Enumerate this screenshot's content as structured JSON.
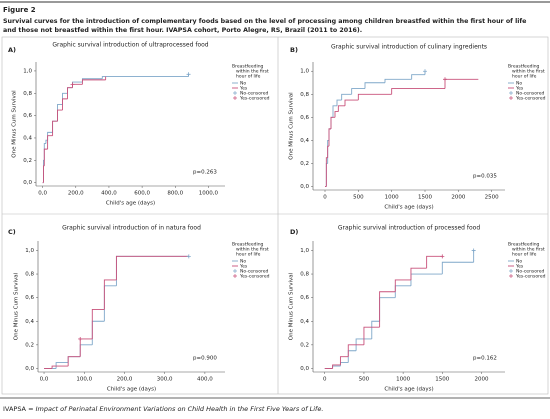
{
  "figure_label": "Figure 2",
  "caption": [
    "Survival curves for the introduction of complementary foods based on the level of processing among children breastfed within the first hour of life",
    "and those not breastfed within the first hour. IVAPSA cohort, Porto Alegre, RS, Brazil (2011 to 2016)."
  ],
  "footnote": {
    "abbr": "IVAPSA =",
    "text": "Impact of Perinatal Environment Variations on Child Health in the First Five Years of Life."
  },
  "chart_data": [
    {
      "type": "step",
      "panel": "A)",
      "title": "Graphic survival introduction of ultraprocessed food",
      "xlabel": "Child's age (days)",
      "ylabel": "One Minus Cum Survival",
      "annotation": "p=0.263",
      "legend_title": [
        "Breastfeeding",
        "within the first",
        "hour of life"
      ],
      "xlim": [
        -40,
        1100
      ],
      "xticks": [
        {
          "value": 0,
          "label": "0,0"
        },
        {
          "value": 200,
          "label": "200,0"
        },
        {
          "value": 400,
          "label": "400,0"
        },
        {
          "value": 600,
          "label": "600,0"
        },
        {
          "value": 800,
          "label": "800,0"
        },
        {
          "value": 1000,
          "label": "1000,0"
        }
      ],
      "ylim": [
        -0.03,
        1.08
      ],
      "yticks": [
        {
          "value": 0,
          "label": "0,0"
        },
        {
          "value": 0.2,
          "label": "0,2"
        },
        {
          "value": 0.4,
          "label": "0,4"
        },
        {
          "value": 0.6,
          "label": "0,6"
        },
        {
          "value": 0.8,
          "label": "0,8"
        },
        {
          "value": 1,
          "label": "1,0"
        }
      ],
      "series": [
        {
          "name": "No",
          "color": "#7fa7c9",
          "style": "step",
          "x": [
            0,
            5,
            10,
            20,
            30,
            60,
            90,
            120,
            150,
            180,
            240,
            360,
            880
          ],
          "values": [
            0,
            0.2,
            0.35,
            0.38,
            0.45,
            0.55,
            0.7,
            0.8,
            0.85,
            0.9,
            0.93,
            0.95,
            0.97
          ]
        },
        {
          "name": "Yes",
          "color": "#c8507a",
          "style": "step",
          "x": [
            0,
            5,
            10,
            30,
            60,
            90,
            120,
            150,
            180,
            240,
            380
          ],
          "values": [
            0,
            0.15,
            0.3,
            0.42,
            0.55,
            0.65,
            0.75,
            0.85,
            0.88,
            0.92,
            0.95
          ]
        },
        {
          "name": "No-censored",
          "color": "#7fa7c9",
          "style": "censored",
          "x": [
            880
          ],
          "values": [
            0.97
          ]
        },
        {
          "name": "Yes-censored",
          "color": "#c8507a",
          "style": "censored",
          "x": [
            180
          ],
          "values": [
            0.88
          ]
        }
      ]
    },
    {
      "type": "step",
      "panel": "B)",
      "title": "Graphic survival introduction of culinary ingredients",
      "xlabel": "Child's age (days)",
      "ylabel": "One Minus Cum Survival",
      "annotation": "p=0.035",
      "legend_title": [
        "Breastfeeding",
        "within the first",
        "hour of life"
      ],
      "xlim": [
        -180,
        2700
      ],
      "xticks": [
        0,
        500,
        1000,
        1500,
        2000,
        2500
      ],
      "ylim": [
        -0.03,
        1.08
      ],
      "yticks": [
        {
          "value": 0,
          "label": "0,0"
        },
        {
          "value": 0.2,
          "label": "0,2"
        },
        {
          "value": 0.4,
          "label": "0,4"
        },
        {
          "value": 0.6,
          "label": "0,6"
        },
        {
          "value": 0.8,
          "label": "0,8"
        },
        {
          "value": 1,
          "label": "1,0"
        }
      ],
      "series": [
        {
          "name": "No",
          "color": "#7fa7c9",
          "style": "step",
          "x": [
            0,
            20,
            40,
            60,
            90,
            120,
            180,
            250,
            400,
            600,
            900,
            1300,
            1500
          ],
          "values": [
            0,
            0.2,
            0.4,
            0.5,
            0.6,
            0.7,
            0.75,
            0.8,
            0.85,
            0.9,
            0.93,
            0.97,
            1
          ]
        },
        {
          "name": "Yes",
          "color": "#c8507a",
          "style": "step",
          "x": [
            0,
            20,
            40,
            60,
            90,
            150,
            200,
            300,
            500,
            1000,
            1800,
            2300
          ],
          "values": [
            0,
            0.25,
            0.35,
            0.5,
            0.6,
            0.65,
            0.7,
            0.75,
            0.8,
            0.85,
            0.93,
            0.93
          ]
        },
        {
          "name": "No-censored",
          "color": "#7fa7c9",
          "style": "censored",
          "x": [
            1500
          ],
          "values": [
            1
          ]
        },
        {
          "name": "Yes-censored",
          "color": "#c8507a",
          "style": "censored",
          "x": [
            1800
          ],
          "values": [
            0.93
          ]
        }
      ]
    },
    {
      "type": "step",
      "panel": "C)",
      "title": "Graphic survival introduction of in natura food",
      "xlabel": "Child's age (days)",
      "ylabel": "One Minus Cum Survival",
      "annotation": "p=0.900",
      "legend_title": [
        "Breastfeeding",
        "within the first",
        "hour of life"
      ],
      "xlim": [
        -15,
        450
      ],
      "xticks": [
        {
          "value": 0,
          "label": "0,0"
        },
        {
          "value": 100,
          "label": "100,0"
        },
        {
          "value": 200,
          "label": "200,0"
        },
        {
          "value": 300,
          "label": "300,0"
        },
        {
          "value": 400,
          "label": "400,0"
        }
      ],
      "ylim": [
        -0.03,
        1.08
      ],
      "yticks": [
        {
          "value": 0,
          "label": "0,0"
        },
        {
          "value": 0.2,
          "label": "0,2"
        },
        {
          "value": 0.4,
          "label": "0,4"
        },
        {
          "value": 0.6,
          "label": "0,6"
        },
        {
          "value": 0.8,
          "label": "0,8"
        },
        {
          "value": 1,
          "label": "1,0"
        }
      ],
      "series": [
        {
          "name": "No",
          "color": "#7fa7c9",
          "style": "step",
          "x": [
            0,
            30,
            60,
            90,
            120,
            150,
            180,
            360
          ],
          "values": [
            0,
            0.05,
            0.1,
            0.2,
            0.4,
            0.7,
            0.95,
            0.95
          ]
        },
        {
          "name": "Yes",
          "color": "#c8507a",
          "style": "step",
          "x": [
            0,
            20,
            60,
            90,
            120,
            150,
            180,
            360
          ],
          "values": [
            0,
            0.02,
            0.1,
            0.25,
            0.5,
            0.75,
            0.95,
            0.95
          ]
        },
        {
          "name": "No-censored",
          "color": "#7fa7c9",
          "style": "censored",
          "x": [
            360
          ],
          "values": [
            0.95
          ]
        },
        {
          "name": "Yes-censored",
          "color": "#c8507a",
          "style": "censored",
          "x": [
            90
          ],
          "values": [
            0.25
          ]
        }
      ]
    },
    {
      "type": "step",
      "panel": "D)",
      "title": "Graphic survival introduction of processed food",
      "xlabel": "Child's age (days)",
      "ylabel": "One Minus Cum Survival",
      "annotation": "p=0.162",
      "legend_title": [
        "Breastfeeding",
        "within the first",
        "hour of life"
      ],
      "xlim": [
        -150,
        2300
      ],
      "xticks": [
        0,
        500,
        1000,
        1500,
        2000
      ],
      "ylim": [
        -0.03,
        1.08
      ],
      "yticks": [
        {
          "value": 0,
          "label": "0,0"
        },
        {
          "value": 0.2,
          "label": "0,2"
        },
        {
          "value": 0.4,
          "label": "0,4"
        },
        {
          "value": 0.6,
          "label": "0,6"
        },
        {
          "value": 0.8,
          "label": "0,8"
        },
        {
          "value": 1,
          "label": "1,0"
        }
      ],
      "series": [
        {
          "name": "No",
          "color": "#7fa7c9",
          "style": "step",
          "x": [
            0,
            100,
            200,
            300,
            400,
            600,
            700,
            900,
            1100,
            1500,
            1900
          ],
          "values": [
            0,
            0.02,
            0.05,
            0.15,
            0.25,
            0.4,
            0.6,
            0.7,
            0.8,
            0.9,
            1
          ]
        },
        {
          "name": "Yes",
          "color": "#c8507a",
          "style": "step",
          "x": [
            0,
            100,
            200,
            300,
            500,
            700,
            900,
            1100,
            1300,
            1500
          ],
          "values": [
            0,
            0.03,
            0.1,
            0.2,
            0.35,
            0.65,
            0.75,
            0.85,
            0.95,
            0.95
          ]
        },
        {
          "name": "No-censored",
          "color": "#7fa7c9",
          "style": "censored",
          "x": [
            1900
          ],
          "values": [
            1
          ]
        },
        {
          "name": "Yes-censored",
          "color": "#c8507a",
          "style": "censored",
          "x": [
            1500
          ],
          "values": [
            0.95
          ]
        }
      ]
    }
  ]
}
